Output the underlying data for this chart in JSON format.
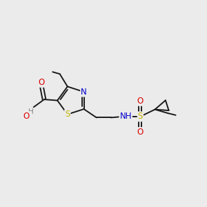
{
  "background_color": "#ebebeb",
  "bond_color": "#1a1a1a",
  "sulfur_color": "#c8b400",
  "nitrogen_color": "#0000cc",
  "oxygen_color": "#dd0000",
  "gray_color": "#808080",
  "fig_w": 3.0,
  "fig_h": 3.0,
  "dpi": 100,
  "xlim": [
    0,
    10
  ],
  "ylim": [
    0,
    10
  ]
}
